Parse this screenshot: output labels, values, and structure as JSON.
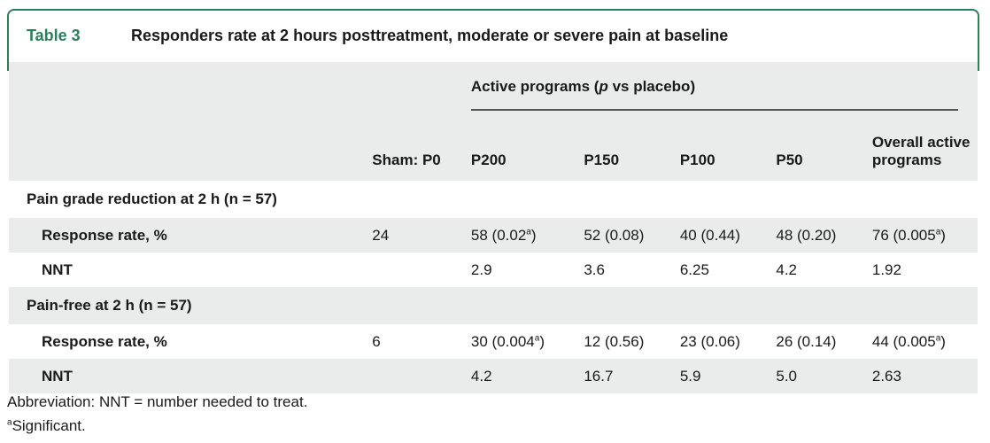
{
  "table": {
    "number": "Table 3",
    "title": "Responders rate at 2 hours posttreatment, moderate or severe pain at baseline",
    "span_header_prefix": "Active programs (",
    "span_header_italic": "p",
    "span_header_suffix": " vs placebo)",
    "columns": [
      "Sham: P0",
      "P200",
      "P150",
      "P100",
      "P50",
      "Overall active programs"
    ],
    "groups": [
      {
        "label": "Pain grade reduction at 2 h (n = 57)",
        "rows": [
          {
            "label": "Response rate, %",
            "cells": [
              "24",
              "58 (0.02",
              "52 (0.08)",
              "40 (0.44)",
              "48 (0.20)",
              "76 (0.005"
            ],
            "sup": [
              "",
              "a",
              "",
              "",
              "",
              "a"
            ],
            "close": [
              "",
              ")",
              "",
              "",
              "",
              ")"
            ]
          },
          {
            "label": "NNT",
            "cells": [
              "",
              "2.9",
              "3.6",
              "6.25",
              "4.2",
              "1.92"
            ]
          }
        ]
      },
      {
        "label": "Pain-free at 2 h (n = 57)",
        "rows": [
          {
            "label": "Response rate, %",
            "cells": [
              "6",
              "30 (0.004",
              "12 (0.56)",
              "23 (0.06)",
              "26 (0.14)",
              "44 (0.005"
            ],
            "sup": [
              "",
              "a",
              "",
              "",
              "",
              "a"
            ],
            "close": [
              "",
              ")",
              "",
              "",
              "",
              ")"
            ]
          },
          {
            "label": "NNT",
            "cells": [
              "",
              "4.2",
              "16.7",
              "5.9",
              "5.0",
              "2.63"
            ]
          }
        ]
      }
    ]
  },
  "footnotes": {
    "abbreviation": "Abbreviation: NNT = number needed to treat.",
    "sig_marker": "a",
    "sig_text": "Significant."
  },
  "colors": {
    "accent": "#2e7d5b",
    "shade": "#e9ecea"
  }
}
